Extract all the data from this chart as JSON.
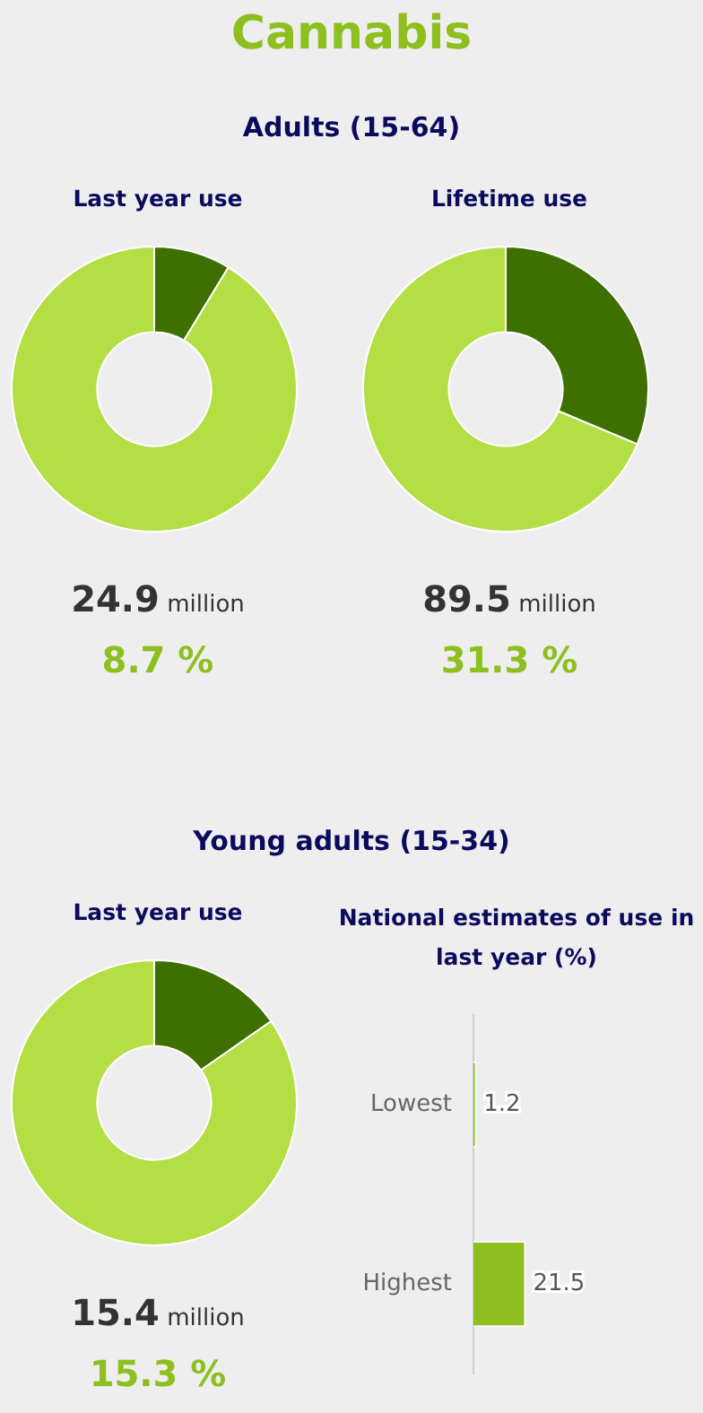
{
  "chart_data": [
    {
      "type": "other",
      "title": "Cannabis"
    },
    {
      "type": "donut",
      "subtitle": "Adults (15-64)",
      "title": "Last year use",
      "categories": [
        null,
        null
      ],
      "values": [
        8.7,
        91.3
      ],
      "colors": [
        "#3d7000",
        "#b3df45"
      ],
      "annotations": [
        "24.9 million",
        "8.7 %"
      ],
      "legend": false
    },
    {
      "type": "donut",
      "title": "Lifetime use",
      "categories": [
        null,
        null
      ],
      "values": [
        31.3,
        68.7
      ],
      "colors": [
        "#3d7000",
        "#b3df45"
      ],
      "annotations": [
        "89.5 million",
        "31.3 %"
      ],
      "legend": false
    },
    {
      "type": "donut",
      "subtitle": "Young adults (15-34)",
      "title": "Last year use",
      "categories": [
        null,
        null
      ],
      "values": [
        15.3,
        84.7
      ],
      "colors": [
        "#3d7000",
        "#b3df45"
      ],
      "annotations": [
        "15.4 million",
        "15.3 %"
      ],
      "legend": false
    },
    {
      "type": "bar",
      "orientation": "horizontal",
      "title": "National estimates of use in last year (%)",
      "categories": [
        "Lowest",
        "Highest"
      ],
      "values": [
        1.2,
        21.5
      ],
      "color": "#8fbf1f",
      "data_labels": true,
      "legend": false,
      "grid": false,
      "tick_labels": "y"
    }
  ]
}
